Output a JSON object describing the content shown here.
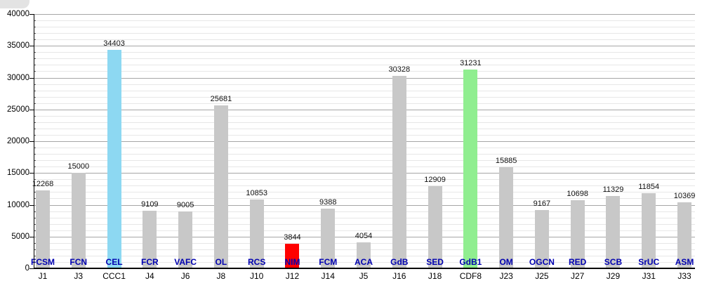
{
  "chart_data": {
    "type": "bar",
    "title": "",
    "xlabel": "",
    "ylabel": "",
    "ylim": [
      0,
      40000
    ],
    "yticks": [
      0,
      5000,
      10000,
      15000,
      20000,
      25000,
      30000,
      35000,
      40000
    ],
    "minor_tick_step": 1000,
    "grid": "horizontal, major and minor lines",
    "legend": "none",
    "categories": [
      "J1",
      "J3",
      "CCC1",
      "J4",
      "J6",
      "J8",
      "J10",
      "J12",
      "J14",
      "J5",
      "J16",
      "J18",
      "CDF8",
      "J23",
      "J25",
      "J27",
      "J29",
      "J31",
      "J33"
    ],
    "bar_labels": [
      "FCSM",
      "FCN",
      "CEL",
      "FCR",
      "VAFC",
      "OL",
      "RCS",
      "NIM",
      "FCM",
      "ACA",
      "GdB",
      "SED",
      "GdB1",
      "OM",
      "OGCN",
      "RED",
      "SCB",
      "SrUC",
      "ASM"
    ],
    "values": [
      12268,
      15000,
      34403,
      9109,
      9005,
      25681,
      10853,
      3844,
      9388,
      4054,
      30328,
      12909,
      31231,
      15885,
      9167,
      10698,
      11329,
      11854,
      10369
    ],
    "bar_colors": [
      "#c8c8c8",
      "#c8c8c8",
      "#8dd8f2",
      "#c8c8c8",
      "#c8c8c8",
      "#c8c8c8",
      "#c8c8c8",
      "#ff0000",
      "#c8c8c8",
      "#c8c8c8",
      "#c8c8c8",
      "#c8c8c8",
      "#90ee90",
      "#c8c8c8",
      "#c8c8c8",
      "#c8c8c8",
      "#c8c8c8",
      "#c8c8c8",
      "#c8c8c8"
    ],
    "bars": [
      {
        "x": "J1",
        "label": "FCSM",
        "value": 12268,
        "color": "#c8c8c8"
      },
      {
        "x": "J3",
        "label": "FCN",
        "value": 15000,
        "color": "#c8c8c8"
      },
      {
        "x": "CCC1",
        "label": "CEL",
        "value": 34403,
        "color": "#8dd8f2"
      },
      {
        "x": "J4",
        "label": "FCR",
        "value": 9109,
        "color": "#c8c8c8"
      },
      {
        "x": "J6",
        "label": "VAFC",
        "value": 9005,
        "color": "#c8c8c8"
      },
      {
        "x": "J8",
        "label": "OL",
        "value": 25681,
        "color": "#c8c8c8"
      },
      {
        "x": "J10",
        "label": "RCS",
        "value": 10853,
        "color": "#c8c8c8"
      },
      {
        "x": "J12",
        "label": "NIM",
        "value": 3844,
        "color": "#ff0000"
      },
      {
        "x": "J14",
        "label": "FCM",
        "value": 9388,
        "color": "#c8c8c8"
      },
      {
        "x": "J5",
        "label": "ACA",
        "value": 4054,
        "color": "#c8c8c8"
      },
      {
        "x": "J16",
        "label": "GdB",
        "value": 30328,
        "color": "#c8c8c8"
      },
      {
        "x": "J18",
        "label": "SED",
        "value": 12909,
        "color": "#c8c8c8"
      },
      {
        "x": "CDF8",
        "label": "GdB1",
        "value": 31231,
        "color": "#90ee90"
      },
      {
        "x": "J23",
        "label": "OM",
        "value": 15885,
        "color": "#c8c8c8"
      },
      {
        "x": "J25",
        "label": "OGCN",
        "value": 9167,
        "color": "#c8c8c8"
      },
      {
        "x": "J27",
        "label": "RED",
        "value": 10698,
        "color": "#c8c8c8"
      },
      {
        "x": "J29",
        "label": "SCB",
        "value": 11329,
        "color": "#c8c8c8"
      },
      {
        "x": "J31",
        "label": "SrUC",
        "value": 11854,
        "color": "#c8c8c8"
      },
      {
        "x": "J33",
        "label": "ASM",
        "value": 10369,
        "color": "#c8c8c8"
      }
    ],
    "colors": {
      "default_bar": "#c8c8c8",
      "highlight_blue": "#8dd8f2",
      "highlight_red": "#ff0000",
      "highlight_green": "#90ee90",
      "club_label_text": "#0000b0",
      "axis_text": "#000000",
      "grid_major": "#a6a6a6",
      "grid_minor": "#e7e7e7"
    }
  }
}
